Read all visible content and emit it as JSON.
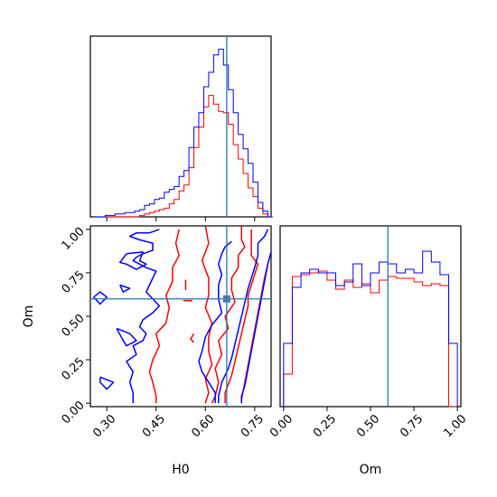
{
  "chart_data": {
    "type": "corner",
    "parameters": [
      "H0",
      "Om"
    ],
    "truths": {
      "H0": 0.665,
      "Om": 0.6
    },
    "series": [
      {
        "color": "#ff0000"
      },
      {
        "color": "#0000ff"
      }
    ],
    "truth_color": "#1f77b4",
    "panels": [
      {
        "id": "hist-H0",
        "type": "histogram",
        "xlim": [
          0.25,
          0.8
        ],
        "x_ticks": [
          0.3,
          0.45,
          0.6,
          0.75
        ],
        "tick_labels_shown": false,
        "bin_edges": [
          0.265,
          0.28,
          0.295,
          0.31,
          0.325,
          0.34,
          0.355,
          0.37,
          0.385,
          0.4,
          0.415,
          0.43,
          0.445,
          0.46,
          0.475,
          0.49,
          0.505,
          0.52,
          0.535,
          0.55,
          0.565,
          0.58,
          0.595,
          0.61,
          0.625,
          0.64,
          0.655,
          0.67,
          0.685,
          0.7,
          0.715,
          0.73,
          0.745,
          0.76,
          0.775,
          0.79,
          0.805
        ],
        "counts": [
          [
            0,
            0,
            0,
            0,
            0,
            0,
            0,
            0,
            0,
            1,
            2,
            3,
            4,
            5,
            6,
            9,
            12,
            18,
            22,
            34,
            48,
            62,
            76,
            84,
            78,
            73,
            72,
            64,
            50,
            40,
            30,
            20,
            14,
            6,
            2,
            0
          ],
          [
            0,
            0,
            1,
            1,
            2,
            2,
            3,
            3,
            4,
            5,
            8,
            9,
            12,
            13,
            17,
            19,
            21,
            28,
            32,
            48,
            62,
            72,
            90,
            100,
            112,
            116,
            105,
            88,
            72,
            57,
            47,
            37,
            24,
            10,
            4,
            0
          ]
        ],
        "ylim": [
          0,
          125
        ]
      },
      {
        "id": "contour-H0-Om",
        "type": "contour",
        "xlabel": "H0",
        "ylabel": "Om",
        "xlim": [
          0.25,
          0.8
        ],
        "ylim": [
          -0.02,
          1.02
        ],
        "x_ticks": [
          0.3,
          0.45,
          0.6,
          0.75
        ],
        "x_tick_labels": [
          "0.30",
          "0.45",
          "0.60",
          "0.75"
        ],
        "y_ticks": [
          0.0,
          0.25,
          0.5,
          0.75,
          1.0
        ],
        "y_tick_labels": [
          "0.00",
          "0.25",
          "0.50",
          "0.75",
          "1.00"
        ],
        "truth_point": [
          0.665,
          0.6
        ],
        "contours": [
          {
            "series": 0,
            "points": [
              [
                0.52,
                1.0
              ],
              [
                0.51,
                0.92
              ],
              [
                0.52,
                0.85
              ],
              [
                0.5,
                0.78
              ],
              [
                0.5,
                0.7
              ],
              [
                0.48,
                0.62
              ],
              [
                0.49,
                0.55
              ],
              [
                0.48,
                0.46
              ],
              [
                0.45,
                0.4
              ],
              [
                0.46,
                0.33
              ],
              [
                0.44,
                0.25
              ],
              [
                0.43,
                0.18
              ],
              [
                0.44,
                0.12
              ],
              [
                0.45,
                0.04
              ],
              [
                0.45,
                0.0
              ]
            ]
          },
          {
            "series": 0,
            "points": [
              [
                0.6,
                1.02
              ],
              [
                0.61,
                0.92
              ],
              [
                0.59,
                0.82
              ],
              [
                0.61,
                0.72
              ],
              [
                0.61,
                0.62
              ],
              [
                0.6,
                0.55
              ],
              [
                0.62,
                0.46
              ],
              [
                0.61,
                0.38
              ],
              [
                0.61,
                0.3
              ],
              [
                0.62,
                0.22
              ],
              [
                0.6,
                0.14
              ],
              [
                0.61,
                0.06
              ],
              [
                0.6,
                0.0
              ]
            ]
          },
          {
            "series": 0,
            "points": [
              [
                0.71,
                1.02
              ],
              [
                0.71,
                0.94
              ],
              [
                0.72,
                0.9
              ],
              [
                0.7,
                0.85
              ],
              [
                0.7,
                0.78
              ],
              [
                0.68,
                0.72
              ],
              [
                0.68,
                0.65
              ],
              [
                0.69,
                0.58
              ],
              [
                0.66,
                0.5
              ],
              [
                0.67,
                0.43
              ],
              [
                0.64,
                0.36
              ],
              [
                0.65,
                0.28
              ],
              [
                0.63,
                0.2
              ],
              [
                0.64,
                0.12
              ],
              [
                0.63,
                0.04
              ],
              [
                0.62,
                0.0
              ]
            ]
          },
          {
            "series": 0,
            "points": [
              [
                0.74,
                1.0
              ],
              [
                0.74,
                0.92
              ],
              [
                0.74,
                0.85
              ],
              [
                0.76,
                0.8
              ],
              [
                0.75,
                0.74
              ],
              [
                0.74,
                0.68
              ],
              [
                0.73,
                0.62
              ],
              [
                0.73,
                0.56
              ],
              [
                0.72,
                0.48
              ],
              [
                0.71,
                0.4
              ],
              [
                0.7,
                0.32
              ],
              [
                0.69,
                0.24
              ],
              [
                0.68,
                0.16
              ],
              [
                0.66,
                0.06
              ],
              [
                0.66,
                0.0
              ]
            ]
          },
          {
            "series": 0,
            "points": [
              [
                0.8,
                0.87
              ],
              [
                0.79,
                0.8
              ],
              [
                0.78,
                0.72
              ],
              [
                0.77,
                0.62
              ],
              [
                0.76,
                0.52
              ],
              [
                0.75,
                0.42
              ],
              [
                0.74,
                0.32
              ],
              [
                0.73,
                0.22
              ],
              [
                0.72,
                0.12
              ],
              [
                0.71,
                0.02
              ],
              [
                0.71,
                0.0
              ]
            ]
          },
          {
            "series": 0,
            "points": [
              [
                0.54,
                0.71
              ],
              [
                0.54,
                0.68
              ],
              [
                0.54,
                0.65
              ]
            ]
          },
          {
            "series": 0,
            "points": [
              [
                0.533,
                0.59
              ],
              [
                0.56,
                0.59
              ]
            ]
          },
          {
            "series": 0,
            "points": [
              [
                0.565,
                0.4
              ],
              [
                0.555,
                0.37
              ],
              [
                0.565,
                0.35
              ]
            ]
          },
          {
            "series": 1,
            "points": [
              [
                0.46,
                1.0
              ],
              [
                0.43,
                0.98
              ],
              [
                0.39,
                0.98
              ],
              [
                0.37,
                0.96
              ],
              [
                0.4,
                0.94
              ],
              [
                0.44,
                0.92
              ],
              [
                0.44,
                0.88
              ],
              [
                0.41,
                0.86
              ],
              [
                0.39,
                0.84
              ],
              [
                0.38,
                0.82
              ],
              [
                0.4,
                0.8
              ],
              [
                0.42,
                0.78
              ],
              [
                0.45,
                0.76
              ],
              [
                0.44,
                0.72
              ],
              [
                0.43,
                0.68
              ],
              [
                0.42,
                0.64
              ],
              [
                0.44,
                0.6
              ],
              [
                0.46,
                0.56
              ],
              [
                0.44,
                0.52
              ],
              [
                0.41,
                0.48
              ],
              [
                0.4,
                0.44
              ],
              [
                0.42,
                0.4
              ],
              [
                0.41,
                0.36
              ],
              [
                0.38,
                0.33
              ],
              [
                0.39,
                0.28
              ],
              [
                0.36,
                0.24
              ],
              [
                0.38,
                0.18
              ],
              [
                0.37,
                0.12
              ],
              [
                0.38,
                0.06
              ],
              [
                0.38,
                0.0
              ]
            ]
          },
          {
            "series": 1,
            "points": [
              [
                0.36,
                0.86
              ],
              [
                0.41,
                0.87
              ],
              [
                0.4,
                0.82
              ],
              [
                0.42,
                0.8
              ],
              [
                0.39,
                0.77
              ],
              [
                0.36,
                0.8
              ],
              [
                0.34,
                0.81
              ],
              [
                0.36,
                0.86
              ]
            ]
          },
          {
            "series": 1,
            "points": [
              [
                0.34,
                0.68
              ],
              [
                0.37,
                0.66
              ],
              [
                0.35,
                0.64
              ],
              [
                0.34,
                0.68
              ]
            ]
          },
          {
            "series": 1,
            "points": [
              [
                0.26,
                0.61
              ],
              [
                0.28,
                0.64
              ],
              [
                0.3,
                0.61
              ],
              [
                0.28,
                0.57
              ],
              [
                0.26,
                0.61
              ]
            ]
          },
          {
            "series": 1,
            "points": [
              [
                0.33,
                0.43
              ],
              [
                0.37,
                0.4
              ],
              [
                0.39,
                0.36
              ],
              [
                0.36,
                0.33
              ],
              [
                0.35,
                0.36
              ],
              [
                0.33,
                0.43
              ]
            ]
          },
          {
            "series": 1,
            "points": [
              [
                0.28,
                0.15
              ],
              [
                0.32,
                0.12
              ],
              [
                0.3,
                0.08
              ],
              [
                0.28,
                0.12
              ],
              [
                0.28,
                0.15
              ]
            ]
          },
          {
            "series": 1,
            "points": [
              [
                0.68,
                0.93
              ],
              [
                0.66,
                0.9
              ],
              [
                0.65,
                0.86
              ],
              [
                0.64,
                0.8
              ],
              [
                0.65,
                0.74
              ],
              [
                0.64,
                0.68
              ],
              [
                0.64,
                0.6
              ],
              [
                0.65,
                0.52
              ],
              [
                0.62,
                0.45
              ],
              [
                0.6,
                0.38
              ],
              [
                0.59,
                0.3
              ],
              [
                0.58,
                0.24
              ],
              [
                0.59,
                0.18
              ],
              [
                0.61,
                0.12
              ],
              [
                0.63,
                0.06
              ],
              [
                0.63,
                0.0
              ]
            ]
          },
          {
            "series": 1,
            "points": [
              [
                0.79,
                1.0
              ],
              [
                0.78,
                0.96
              ],
              [
                0.76,
                0.92
              ],
              [
                0.76,
                0.85
              ],
              [
                0.75,
                0.78
              ],
              [
                0.74,
                0.72
              ],
              [
                0.73,
                0.66
              ],
              [
                0.72,
                0.58
              ],
              [
                0.71,
                0.5
              ],
              [
                0.7,
                0.42
              ],
              [
                0.69,
                0.34
              ],
              [
                0.68,
                0.26
              ],
              [
                0.67,
                0.2
              ],
              [
                0.65,
                0.12
              ],
              [
                0.64,
                0.04
              ],
              [
                0.64,
                0.0
              ]
            ]
          },
          {
            "series": 1,
            "points": [
              [
                0.8,
                0.87
              ],
              [
                0.79,
                0.8
              ],
              [
                0.78,
                0.7
              ],
              [
                0.77,
                0.6
              ],
              [
                0.76,
                0.5
              ],
              [
                0.75,
                0.4
              ],
              [
                0.74,
                0.3
              ],
              [
                0.73,
                0.2
              ],
              [
                0.72,
                0.1
              ],
              [
                0.71,
                0.04
              ],
              [
                0.71,
                0.0
              ]
            ]
          }
        ]
      },
      {
        "id": "hist-Om",
        "type": "histogram",
        "xlabel": "Om",
        "xlim": [
          -0.02,
          1.02
        ],
        "x_ticks": [
          0.0,
          0.25,
          0.5,
          0.75,
          1.0
        ],
        "x_tick_labels": [
          "0.00",
          "0.25",
          "0.50",
          "0.75",
          "1.00"
        ],
        "bin_edges": [
          0.0,
          0.05,
          0.1,
          0.15,
          0.2,
          0.25,
          0.3,
          0.35,
          0.4,
          0.45,
          0.5,
          0.55,
          0.6,
          0.65,
          0.7,
          0.75,
          0.8,
          0.85,
          0.9,
          0.95,
          1.0
        ],
        "counts": [
          [
            18,
            72,
            73,
            74,
            75,
            70,
            65,
            70,
            66,
            68,
            63,
            70,
            72,
            71,
            71,
            69,
            67,
            68,
            67,
            0
          ],
          [
            35,
            66,
            74,
            76,
            74,
            74,
            67,
            69,
            79,
            67,
            74,
            80,
            79,
            74,
            76,
            74,
            86,
            80,
            73,
            35
          ]
        ],
        "ylim": [
          0,
          100
        ]
      }
    ]
  }
}
